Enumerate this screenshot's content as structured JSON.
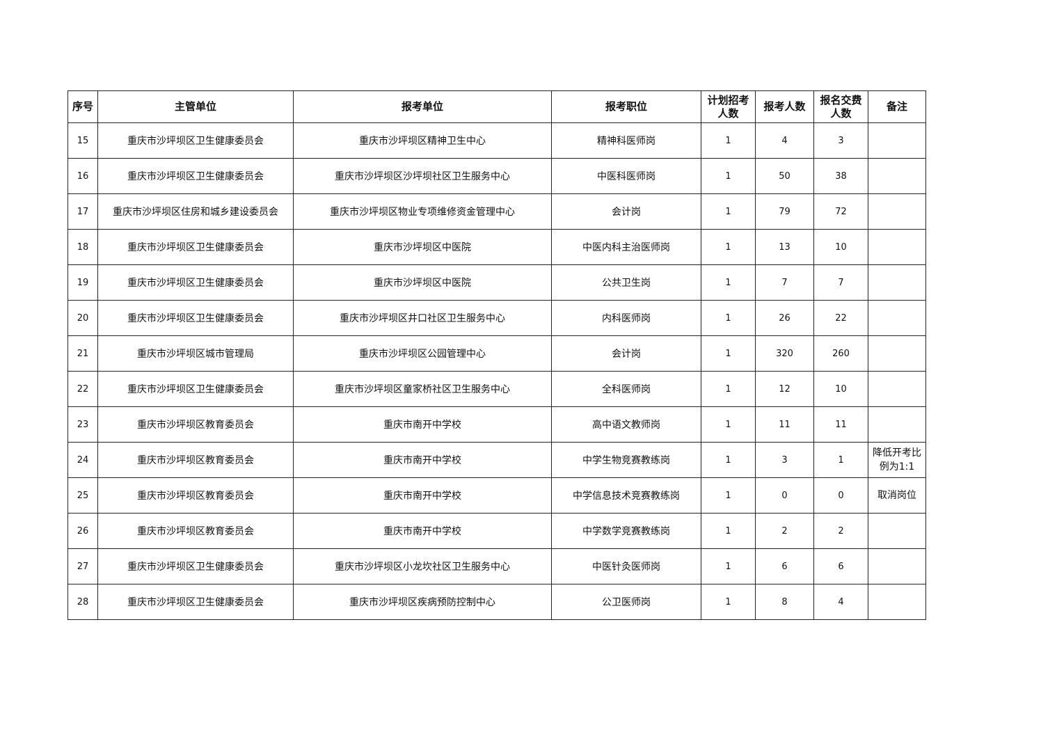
{
  "headers": [
    "序号",
    "主管单位",
    "报考单位",
    "报考职位",
    "计划招考人数",
    "报考人数",
    "报名交费人数",
    "备注"
  ],
  "rows": [
    [
      "15",
      "重庆市沙坪坝区卫生健康委员会",
      "重庆市沙坪坝区精神卫生中心",
      "精神科医师岗",
      "1",
      "4",
      "3",
      ""
    ],
    [
      "16",
      "重庆市沙坪坝区卫生健康委员会",
      "重庆市沙坪坝区沙坪坝社区卫生服务中心",
      "中医科医师岗",
      "1",
      "50",
      "38",
      ""
    ],
    [
      "17",
      "重庆市沙坪坝区住房和城乡建设委员会",
      "重庆市沙坪坝区物业专项维修资金管理中心",
      "会计岗",
      "1",
      "79",
      "72",
      ""
    ],
    [
      "18",
      "重庆市沙坪坝区卫生健康委员会",
      "重庆市沙坪坝区中医院",
      "中医内科主治医师岗",
      "1",
      "13",
      "10",
      ""
    ],
    [
      "19",
      "重庆市沙坪坝区卫生健康委员会",
      "重庆市沙坪坝区中医院",
      "公共卫生岗",
      "1",
      "7",
      "7",
      ""
    ],
    [
      "20",
      "重庆市沙坪坝区卫生健康委员会",
      "重庆市沙坪坝区井口社区卫生服务中心",
      "内科医师岗",
      "1",
      "26",
      "22",
      ""
    ],
    [
      "21",
      "重庆市沙坪坝区城市管理局",
      "重庆市沙坪坝区公园管理中心",
      "会计岗",
      "1",
      "320",
      "260",
      ""
    ],
    [
      "22",
      "重庆市沙坪坝区卫生健康委员会",
      "重庆市沙坪坝区童家桥社区卫生服务中心",
      "全科医师岗",
      "1",
      "12",
      "10",
      ""
    ],
    [
      "23",
      "重庆市沙坪坝区教育委员会",
      "重庆市南开中学校",
      "高中语文教师岗",
      "1",
      "11",
      "11",
      ""
    ],
    [
      "24",
      "重庆市沙坪坝区教育委员会",
      "重庆市南开中学校",
      "中学生物竞赛教练岗",
      "1",
      "3",
      "1",
      "降低开考比例为1:1"
    ],
    [
      "25",
      "重庆市沙坪坝区教育委员会",
      "重庆市南开中学校",
      "中学信息技术竞赛教练岗",
      "1",
      "0",
      "0",
      "取消岗位"
    ],
    [
      "26",
      "重庆市沙坪坝区教育委员会",
      "重庆市南开中学校",
      "中学数学竞赛教练岗",
      "1",
      "2",
      "2",
      ""
    ],
    [
      "27",
      "重庆市沙坪坝区卫生健康委员会",
      "重庆市沙坪坝区小龙坎社区卫生服务中心",
      "中医针灸医师岗",
      "1",
      "6",
      "6",
      ""
    ],
    [
      "28",
      "重庆市沙坪坝区卫生健康委员会",
      "重庆市沙坪坝区疾病预防控制中心",
      "公卫医师岗",
      "1",
      "8",
      "4",
      ""
    ]
  ]
}
